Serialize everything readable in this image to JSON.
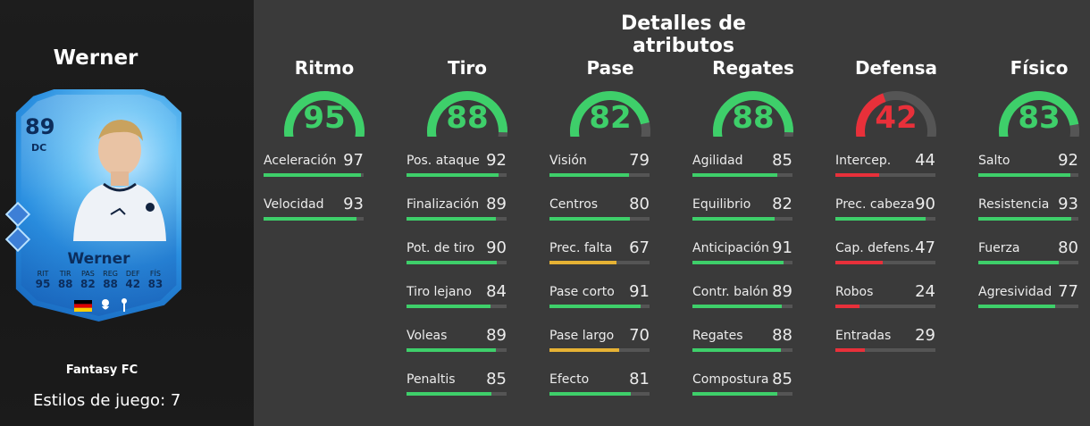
{
  "player": {
    "name": "Werner",
    "card_type": "Fantasy FC",
    "playstyles_text": "Estilos de juego: 7"
  },
  "card": {
    "rating": "89",
    "position": "DC",
    "name": "Werner",
    "stats": [
      {
        "label": "RIT",
        "value": "95"
      },
      {
        "label": "TIR",
        "value": "88"
      },
      {
        "label": "PAS",
        "value": "82"
      },
      {
        "label": "REG",
        "value": "88"
      },
      {
        "label": "DEF",
        "value": "42"
      },
      {
        "label": "FÍS",
        "value": "83"
      }
    ]
  },
  "title": "Detalles de atributos",
  "colors": {
    "green": "#3ecf6a",
    "yellow": "#e6b234",
    "red": "#e8303a",
    "track": "#555555"
  },
  "categories": [
    {
      "name": "Ritmo",
      "value": 95,
      "color": "green",
      "attributes": [
        {
          "name": "Aceleración",
          "value": 97,
          "color": "green"
        },
        {
          "name": "Velocidad",
          "value": 93,
          "color": "green"
        }
      ]
    },
    {
      "name": "Tiro",
      "value": 88,
      "color": "green",
      "attributes": [
        {
          "name": "Pos. ataque",
          "value": 92,
          "color": "green"
        },
        {
          "name": "Finalización",
          "value": 89,
          "color": "green"
        },
        {
          "name": "Pot. de tiro",
          "value": 90,
          "color": "green"
        },
        {
          "name": "Tiro lejano",
          "value": 84,
          "color": "green"
        },
        {
          "name": "Voleas",
          "value": 89,
          "color": "green"
        },
        {
          "name": "Penaltis",
          "value": 85,
          "color": "green"
        }
      ]
    },
    {
      "name": "Pase",
      "value": 82,
      "color": "green",
      "attributes": [
        {
          "name": "Visión",
          "value": 79,
          "color": "green"
        },
        {
          "name": "Centros",
          "value": 80,
          "color": "green"
        },
        {
          "name": "Prec. falta",
          "value": 67,
          "color": "yellow"
        },
        {
          "name": "Pase corto",
          "value": 91,
          "color": "green"
        },
        {
          "name": "Pase largo",
          "value": 70,
          "color": "yellow"
        },
        {
          "name": "Efecto",
          "value": 81,
          "color": "green"
        }
      ]
    },
    {
      "name": "Regates",
      "value": 88,
      "color": "green",
      "attributes": [
        {
          "name": "Agilidad",
          "value": 85,
          "color": "green"
        },
        {
          "name": "Equilibrio",
          "value": 82,
          "color": "green"
        },
        {
          "name": "Anticipación",
          "value": 91,
          "color": "green"
        },
        {
          "name": "Contr. balón",
          "value": 89,
          "color": "green"
        },
        {
          "name": "Regates",
          "value": 88,
          "color": "green"
        },
        {
          "name": "Compostura",
          "value": 85,
          "color": "green"
        }
      ]
    },
    {
      "name": "Defensa",
      "value": 42,
      "color": "red",
      "attributes": [
        {
          "name": "Intercep.",
          "value": 44,
          "color": "red"
        },
        {
          "name": "Prec. cabeza",
          "value": 90,
          "color": "green"
        },
        {
          "name": "Cap. defens.",
          "value": 47,
          "color": "red"
        },
        {
          "name": "Robos",
          "value": 24,
          "color": "red"
        },
        {
          "name": "Entradas",
          "value": 29,
          "color": "red"
        }
      ]
    },
    {
      "name": "Físico",
      "value": 83,
      "color": "green",
      "attributes": [
        {
          "name": "Salto",
          "value": 92,
          "color": "green"
        },
        {
          "name": "Resistencia",
          "value": 93,
          "color": "green"
        },
        {
          "name": "Fuerza",
          "value": 80,
          "color": "green"
        },
        {
          "name": "Agresividad",
          "value": 77,
          "color": "green"
        }
      ]
    }
  ]
}
